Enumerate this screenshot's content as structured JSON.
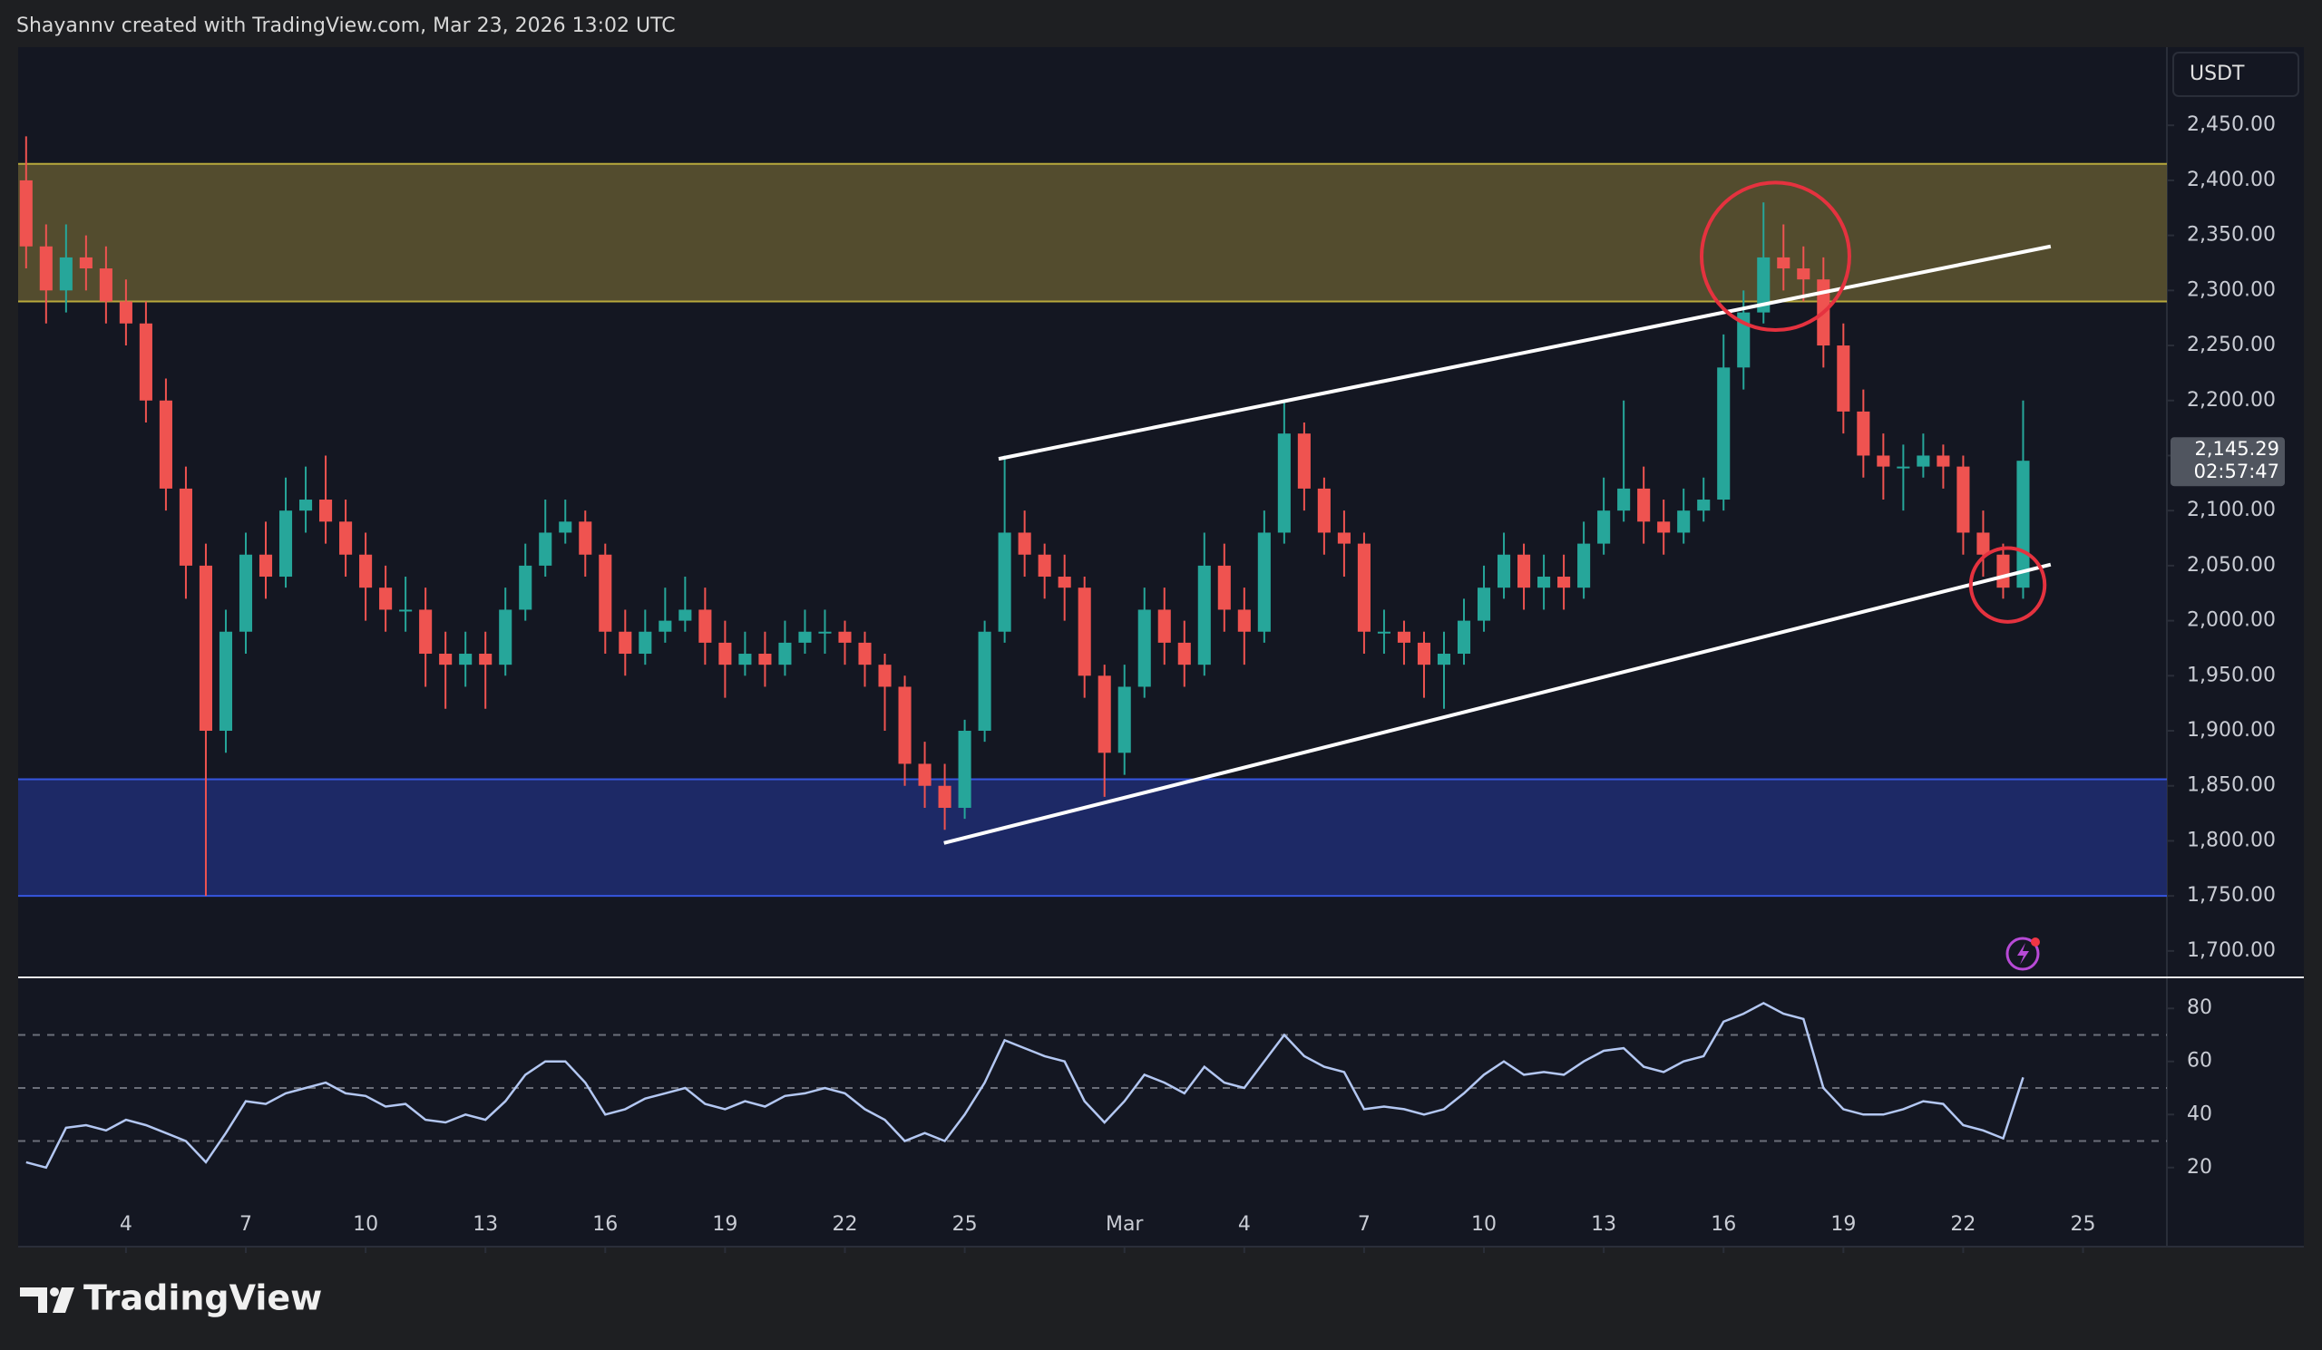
{
  "header": {
    "title": "Shayannv created with TradingView.com, Mar 23, 2026 13:02 UTC",
    "currency": "USDT"
  },
  "footer": {
    "brand": "TradingView"
  },
  "chart_data": [
    {
      "type": "candlestick",
      "up_color": "#26a69a",
      "down_color": "#ef5350",
      "x": [
        1.5,
        2,
        2.5,
        3,
        3.5,
        4,
        4.5,
        5,
        5.5,
        6,
        6.5,
        7,
        7.5,
        8,
        8.5,
        9,
        9.5,
        10,
        10.5,
        11,
        11.5,
        12,
        12.5,
        13,
        13.5,
        14,
        14.5,
        15,
        15.5,
        16,
        16.5,
        17,
        17.5,
        18,
        18.5,
        19,
        19.5,
        20,
        20.5,
        21,
        21.5,
        22,
        22.5,
        23,
        23.5,
        24,
        24.5,
        25,
        25.5,
        26,
        26.5,
        27,
        27.5,
        28,
        28.5,
        29,
        29.5,
        30,
        30.5,
        31,
        31.5,
        32,
        32.5,
        33,
        33.5,
        34,
        34.5,
        35,
        35.5,
        36,
        36.5,
        37,
        37.5,
        38,
        38.5,
        39,
        39.5,
        40,
        40.5,
        41,
        41.5,
        42,
        42.5,
        43,
        43.5,
        44,
        44.5,
        45,
        45.5,
        46,
        46.5,
        47,
        47.5,
        48,
        48.5,
        49,
        49.5,
        50,
        50.5,
        51,
        51.5
      ],
      "open": [
        2400,
        2340,
        2300,
        2330,
        2320,
        2290,
        2270,
        2200,
        2120,
        2050,
        1900,
        1990,
        2060,
        2040,
        2100,
        2110,
        2090,
        2060,
        2030,
        2010,
        2010,
        1970,
        1960,
        1970,
        1960,
        2010,
        2050,
        2080,
        2090,
        2060,
        1990,
        1970,
        1990,
        2000,
        2010,
        1980,
        1960,
        1970,
        1960,
        1980,
        1990,
        1990,
        1980,
        1960,
        1940,
        1870,
        1850,
        1830,
        1900,
        1990,
        2080,
        2060,
        2040,
        2030,
        1950,
        1880,
        1940,
        2010,
        1980,
        1960,
        2050,
        2010,
        1990,
        2080,
        2170,
        2120,
        2080,
        2070,
        1990,
        1990,
        1980,
        1960,
        1970,
        2000,
        2030,
        2060,
        2030,
        2040,
        2030,
        2070,
        2100,
        2120,
        2090,
        2080,
        2100,
        2110,
        2230,
        2280,
        2330,
        2320,
        2310,
        2250,
        2190,
        2150,
        2140,
        2140,
        2150,
        2140,
        2080,
        2060,
        2030
      ],
      "high": [
        2440,
        2360,
        2360,
        2350,
        2340,
        2310,
        2290,
        2220,
        2140,
        2070,
        2010,
        2080,
        2090,
        2130,
        2140,
        2150,
        2110,
        2080,
        2050,
        2040,
        2030,
        1990,
        1990,
        1990,
        2030,
        2070,
        2110,
        2110,
        2100,
        2070,
        2010,
        2010,
        2030,
        2040,
        2030,
        2000,
        1990,
        1990,
        2000,
        2010,
        2010,
        2000,
        1990,
        1970,
        1950,
        1890,
        1870,
        1910,
        2000,
        2150,
        2100,
        2070,
        2060,
        2040,
        1960,
        1960,
        2030,
        2030,
        2000,
        2080,
        2070,
        2030,
        2100,
        2200,
        2180,
        2130,
        2100,
        2080,
        2010,
        2000,
        1990,
        1990,
        2020,
        2050,
        2080,
        2070,
        2060,
        2060,
        2090,
        2130,
        2200,
        2140,
        2110,
        2120,
        2130,
        2260,
        2300,
        2380,
        2360,
        2340,
        2330,
        2270,
        2210,
        2170,
        2160,
        2170,
        2160,
        2150,
        2100,
        2070,
        2200
      ],
      "low": [
        2320,
        2270,
        2280,
        2300,
        2270,
        2250,
        2180,
        2100,
        2020,
        1750,
        1880,
        1970,
        2020,
        2030,
        2080,
        2070,
        2040,
        2000,
        1990,
        1990,
        1940,
        1920,
        1940,
        1920,
        1950,
        2000,
        2040,
        2070,
        2040,
        1970,
        1950,
        1960,
        1980,
        1990,
        1960,
        1930,
        1950,
        1940,
        1950,
        1970,
        1970,
        1960,
        1940,
        1900,
        1850,
        1830,
        1810,
        1820,
        1890,
        1980,
        2040,
        2020,
        2000,
        1930,
        1840,
        1860,
        1930,
        1960,
        1940,
        1950,
        1990,
        1960,
        1980,
        2070,
        2100,
        2060,
        2040,
        1970,
        1970,
        1960,
        1930,
        1920,
        1960,
        1990,
        2020,
        2010,
        2010,
        2010,
        2020,
        2060,
        2090,
        2070,
        2060,
        2070,
        2090,
        2100,
        2210,
        2270,
        2300,
        2290,
        2230,
        2170,
        2130,
        2110,
        2100,
        2130,
        2120,
        2060,
        2040,
        2020,
        2020
      ],
      "close": [
        2340,
        2300,
        2330,
        2320,
        2290,
        2270,
        2200,
        2120,
        2050,
        1900,
        1990,
        2060,
        2040,
        2100,
        2110,
        2090,
        2060,
        2030,
        2010,
        2010,
        1970,
        1960,
        1970,
        1960,
        2010,
        2050,
        2080,
        2090,
        2060,
        1990,
        1970,
        1990,
        2000,
        2010,
        1980,
        1960,
        1970,
        1960,
        1980,
        1990,
        1990,
        1980,
        1960,
        1940,
        1870,
        1850,
        1830,
        1900,
        1990,
        2080,
        2060,
        2040,
        2030,
        1950,
        1880,
        1940,
        2010,
        1980,
        1960,
        2050,
        2010,
        1990,
        2080,
        2170,
        2120,
        2080,
        2070,
        1990,
        1990,
        1980,
        1960,
        1970,
        2000,
        2030,
        2060,
        2030,
        2040,
        2030,
        2070,
        2100,
        2120,
        2090,
        2080,
        2100,
        2110,
        2230,
        2280,
        2330,
        2320,
        2310,
        2250,
        2190,
        2150,
        2140,
        2140,
        2150,
        2140,
        2080,
        2060,
        2030,
        2145.29
      ],
      "price_label": {
        "value": 2145.29,
        "label": "2,145.29"
      },
      "countdown": "02:57:47",
      "xlim": [
        1.3,
        55.1
      ],
      "ylim": [
        1676,
        2521
      ],
      "yticks": [
        {
          "value": 1700,
          "label": "1,700.00"
        },
        {
          "value": 1750,
          "label": "1,750.00"
        },
        {
          "value": 1800,
          "label": "1,800.00"
        },
        {
          "value": 1850,
          "label": "1,850.00"
        },
        {
          "value": 1900,
          "label": "1,900.00"
        },
        {
          "value": 1950,
          "label": "1,950.00"
        },
        {
          "value": 2000,
          "label": "2,000.00"
        },
        {
          "value": 2050,
          "label": "2,050.00"
        },
        {
          "value": 2100,
          "label": "2,100.00"
        },
        {
          "value": 2150,
          "label": "2,150.00"
        },
        {
          "value": 2200,
          "label": "2,200.00"
        },
        {
          "value": 2250,
          "label": "2,250.00"
        },
        {
          "value": 2300,
          "label": "2,300.00"
        },
        {
          "value": 2350,
          "label": "2,350.00"
        },
        {
          "value": 2400,
          "label": "2,400.00"
        },
        {
          "value": 2450,
          "label": "2,450.00"
        }
      ],
      "grid": false,
      "zones": [
        {
          "y": [
            2290,
            2415
          ],
          "color": "#5e5630",
          "border": "#b8a93c"
        },
        {
          "y": [
            1750,
            1856
          ],
          "color": "#1f2d72",
          "border": "#3656e0"
        }
      ],
      "trendlines": [
        {
          "x": [
            25.85,
            52.19
          ],
          "y": [
            2147,
            2340
          ],
          "color": "#ffffff"
        },
        {
          "x": [
            24.48,
            52.19
          ],
          "y": [
            1798,
            2051
          ],
          "color": "#ffffff"
        }
      ],
      "circles": [
        {
          "x": [
            43.45,
            47.15
          ],
          "y": [
            2264,
            2398
          ],
          "color": "#e5323f"
        },
        {
          "x": [
            50.19,
            52.04
          ],
          "y": [
            1999,
            2066
          ],
          "color": "#e5323f"
        }
      ]
    },
    {
      "type": "line",
      "color": "#b3c7f2",
      "values": [
        22,
        20,
        35,
        36,
        34,
        38,
        36,
        33,
        30,
        22,
        33,
        45,
        44,
        48,
        50,
        52,
        48,
        47,
        43,
        44,
        38,
        37,
        40,
        38,
        45,
        55,
        60,
        60,
        52,
        40,
        42,
        46,
        48,
        50,
        44,
        42,
        45,
        43,
        47,
        48,
        50,
        48,
        42,
        38,
        30,
        33,
        30,
        40,
        52,
        68,
        65,
        62,
        60,
        45,
        37,
        45,
        55,
        52,
        48,
        58,
        52,
        50,
        60,
        70,
        62,
        58,
        56,
        42,
        43,
        42,
        40,
        42,
        48,
        55,
        60,
        55,
        56,
        55,
        60,
        64,
        65,
        58,
        56,
        60,
        62,
        75,
        78,
        82,
        78,
        76,
        50,
        42,
        40,
        40,
        42,
        45,
        44,
        36,
        34,
        31,
        54
      ],
      "xlim": [
        1.3,
        55.1
      ],
      "xticks": [
        4,
        7,
        10,
        13,
        16,
        19,
        22,
        25,
        {
          "value": 29,
          "label": "Mar"
        },
        {
          "value": 32,
          "label": "4"
        },
        {
          "value": 35,
          "label": "7"
        },
        {
          "value": 38,
          "label": "10"
        },
        {
          "value": 41,
          "label": "13"
        },
        {
          "value": 44,
          "label": "16"
        },
        {
          "value": 47,
          "label": "19"
        },
        {
          "value": 50,
          "label": "22"
        },
        {
          "value": 53,
          "label": "25"
        }
      ],
      "ylim": [
        8.3,
        91.7
      ],
      "yticks": [
        20,
        40,
        60,
        80
      ],
      "levels": [
        70,
        50,
        30
      ]
    }
  ]
}
